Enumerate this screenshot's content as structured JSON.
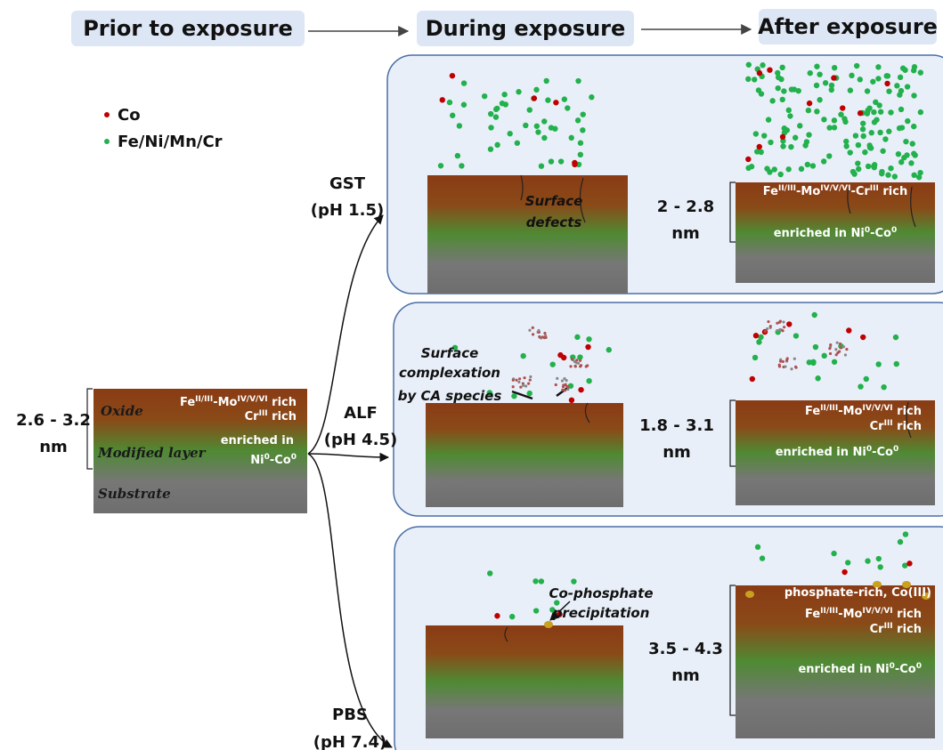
{
  "headers": [
    "Prior to exposure",
    "During exposure",
    "After exposure"
  ],
  "legend": [
    {
      "label": "Co",
      "color": "#c00000"
    },
    {
      "label": "Fe/Ni/Mn/Cr",
      "color": "#22b14c"
    }
  ],
  "initial": {
    "thickness": [
      "2.6 - 3.2",
      "nm"
    ],
    "layers": [
      "Oxide",
      "Modified layer",
      "Substrate"
    ],
    "notes": [
      {
        "segments": [
          {
            "text": "Fe"
          },
          {
            "text": "II/III",
            "sup": true
          },
          {
            "text": "-Mo"
          },
          {
            "text": "IV/V/VI",
            "sup": true
          },
          {
            "text": " rich"
          }
        ]
      },
      {
        "segments": [
          {
            "text": "Cr"
          },
          {
            "text": "III",
            "sup": true
          },
          {
            "text": " rich"
          }
        ]
      },
      {
        "segments": [
          {
            "text": "enriched in"
          }
        ]
      },
      {
        "segments": [
          {
            "text": "Ni"
          },
          {
            "text": "0",
            "sup": true
          },
          {
            "text": "-Co"
          },
          {
            "text": "0",
            "sup": true
          }
        ]
      }
    ]
  },
  "conditions": [
    {
      "name": "GST",
      "ph": "(pH 1.5)",
      "annotation": [
        "Surface",
        "defects"
      ],
      "thickness": [
        "2 - 2.8",
        "nm"
      ],
      "notes": [
        {
          "segments": [
            {
              "text": "Fe"
            },
            {
              "text": "II/III",
              "sup": true
            },
            {
              "text": "-Mo"
            },
            {
              "text": "IV/V/VI",
              "sup": true
            },
            {
              "text": "-Cr"
            },
            {
              "text": "III",
              "sup": true
            },
            {
              "text": " rich"
            }
          ]
        },
        {
          "segments": [
            {
              "text": "enriched in  Ni"
            },
            {
              "text": "0",
              "sup": true
            },
            {
              "text": "-Co"
            },
            {
              "text": "0",
              "sup": true
            }
          ]
        }
      ]
    },
    {
      "name": "ALF",
      "ph": "(pH 4.5)",
      "annotation": [
        "Surface",
        "complexation",
        "by CA species"
      ],
      "thickness": [
        "1.8 - 3.1",
        "nm"
      ],
      "notes": [
        {
          "segments": [
            {
              "text": "Fe"
            },
            {
              "text": "II/III",
              "sup": true
            },
            {
              "text": "-Mo"
            },
            {
              "text": "IV/V/VI",
              "sup": true
            },
            {
              "text": " rich"
            }
          ]
        },
        {
          "segments": [
            {
              "text": "Cr"
            },
            {
              "text": "III",
              "sup": true
            },
            {
              "text": " rich"
            }
          ]
        },
        {
          "segments": [
            {
              "text": "enriched in  Ni"
            },
            {
              "text": "0",
              "sup": true
            },
            {
              "text": "-Co"
            },
            {
              "text": "0",
              "sup": true
            }
          ]
        }
      ]
    },
    {
      "name": "PBS",
      "ph": "(pH 7.4)",
      "annotation": [
        "Co-phosphate",
        "precipitation"
      ],
      "thickness": [
        "3.5 - 4.3",
        "nm"
      ],
      "notes": [
        {
          "segments": [
            {
              "text": "phosphate-rich, Co(III)"
            }
          ]
        },
        {
          "segments": [
            {
              "text": "Fe"
            },
            {
              "text": "II/III",
              "sup": true
            },
            {
              "text": "-Mo"
            },
            {
              "text": "IV/V/VI",
              "sup": true
            },
            {
              "text": " rich"
            }
          ]
        },
        {
          "segments": [
            {
              "text": "Cr"
            },
            {
              "text": "III",
              "sup": true
            },
            {
              "text": " rich"
            }
          ]
        },
        {
          "segments": [
            {
              "text": "enriched in Ni"
            },
            {
              "text": "0",
              "sup": true
            },
            {
              "text": "-Co"
            },
            {
              "text": "0",
              "sup": true
            }
          ]
        }
      ]
    }
  ]
}
